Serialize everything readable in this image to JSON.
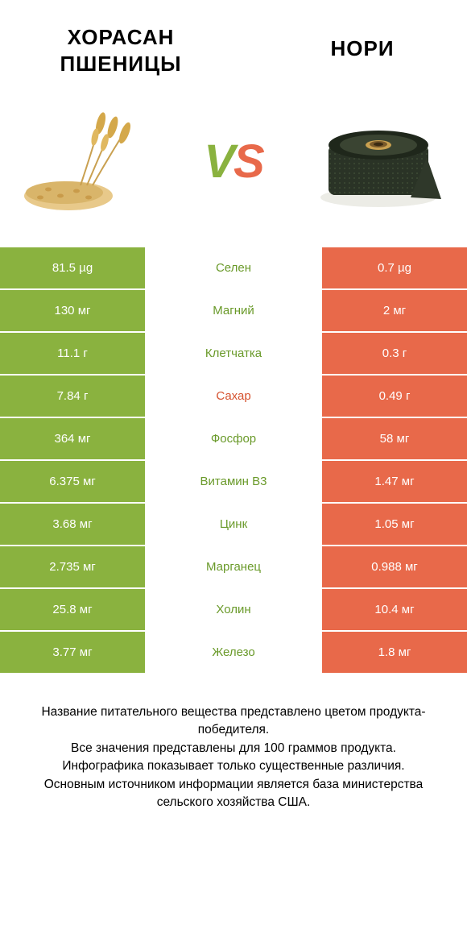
{
  "colors": {
    "green": "#8ab23f",
    "orange": "#e8694a",
    "nutrient_green": "#6a9a2a",
    "nutrient_orange": "#d5522f"
  },
  "titles": {
    "left": "Хорасан Пшеницы",
    "right": "Нори"
  },
  "vs": {
    "v": "V",
    "s": "S"
  },
  "rows": [
    {
      "left": "81.5 µg",
      "mid": "Селен",
      "right": "0.7 µg",
      "winner": "left"
    },
    {
      "left": "130 мг",
      "mid": "Магний",
      "right": "2 мг",
      "winner": "left"
    },
    {
      "left": "11.1 г",
      "mid": "Клетчатка",
      "right": "0.3 г",
      "winner": "left"
    },
    {
      "left": "7.84 г",
      "mid": "Сахар",
      "right": "0.49 г",
      "winner": "right"
    },
    {
      "left": "364 мг",
      "mid": "Фосфор",
      "right": "58 мг",
      "winner": "left"
    },
    {
      "left": "6.375 мг",
      "mid": "Витамин B3",
      "right": "1.47 мг",
      "winner": "left"
    },
    {
      "left": "3.68 мг",
      "mid": "Цинк",
      "right": "1.05 мг",
      "winner": "left"
    },
    {
      "left": "2.735 мг",
      "mid": "Марганец",
      "right": "0.988 мг",
      "winner": "left"
    },
    {
      "left": "25.8 мг",
      "mid": "Холин",
      "right": "10.4 мг",
      "winner": "left"
    },
    {
      "left": "3.77 мг",
      "mid": "Железо",
      "right": "1.8 мг",
      "winner": "left"
    }
  ],
  "footer": {
    "l1": "Название питательного вещества представлено цветом продукта-победителя.",
    "l2": "Все значения представлены для 100 граммов продукта.",
    "l3": "Инфографика показывает только существенные различия.",
    "l4": "Основным источником информации является база министерства сельского хозяйства США."
  }
}
